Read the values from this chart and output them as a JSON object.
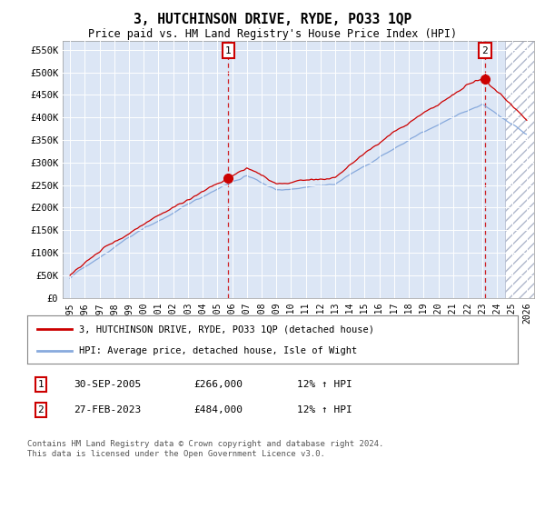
{
  "title": "3, HUTCHINSON DRIVE, RYDE, PO33 1QP",
  "subtitle": "Price paid vs. HM Land Registry's House Price Index (HPI)",
  "ytick_values": [
    0,
    50000,
    100000,
    150000,
    200000,
    250000,
    300000,
    350000,
    400000,
    450000,
    500000,
    550000
  ],
  "ylabel_ticks": [
    "£0",
    "£50K",
    "£100K",
    "£150K",
    "£200K",
    "£250K",
    "£300K",
    "£350K",
    "£400K",
    "£450K",
    "£500K",
    "£550K"
  ],
  "background_color": "#dce6f5",
  "red_line_color": "#cc0000",
  "blue_line_color": "#88aadd",
  "sale1_year": 2005.75,
  "sale1_value": 266000,
  "sale2_year": 2023.16,
  "sale2_value": 484000,
  "legend_line1": "3, HUTCHINSON DRIVE, RYDE, PO33 1QP (detached house)",
  "legend_line2": "HPI: Average price, detached house, Isle of Wight",
  "annotation1_date": "30-SEP-2005",
  "annotation1_price": "£266,000",
  "annotation1_hpi": "12% ↑ HPI",
  "annotation2_date": "27-FEB-2023",
  "annotation2_price": "£484,000",
  "annotation2_hpi": "12% ↑ HPI",
  "footer": "Contains HM Land Registry data © Crown copyright and database right 2024.\nThis data is licensed under the Open Government Licence v3.0."
}
